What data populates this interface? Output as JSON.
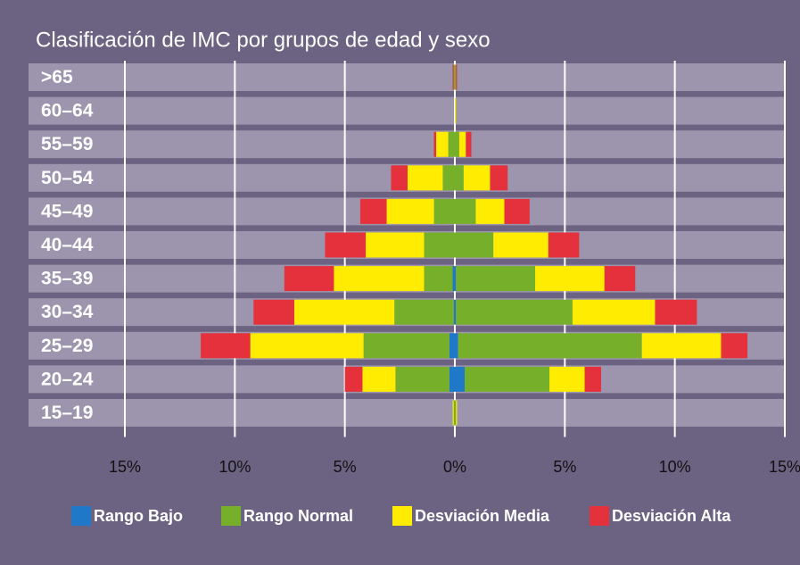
{
  "chart_data": {
    "type": "pyramid-stacked-bar",
    "title": "Clasificación de IMC por grupos de edad y sexo",
    "categories": [
      ">65",
      "60–64",
      "55–59",
      "50–54",
      "45–49",
      "40–44",
      "35–39",
      "30–34",
      "25–29",
      "20–24",
      "15–19"
    ],
    "series": [
      {
        "name": "Rango Bajo",
        "color": "#1f78c8",
        "left": [
          0,
          0,
          0,
          0,
          0,
          0,
          0.1,
          0.05,
          0.25,
          0.25,
          0
        ],
        "right": [
          0,
          0,
          0,
          0,
          0,
          0,
          0.05,
          0.05,
          0.15,
          0.45,
          0
        ]
      },
      {
        "name": "Rango Normal",
        "color": "#76b02a",
        "left": [
          0.05,
          0,
          0.3,
          0.55,
          0.95,
          1.4,
          1.3,
          2.7,
          3.9,
          2.45,
          0.05
        ],
        "right": [
          0.05,
          0,
          0.2,
          0.4,
          0.95,
          1.75,
          3.6,
          5.3,
          8.35,
          3.85,
          0.05
        ]
      },
      {
        "name": "Desviación Media",
        "color": "#ffec00",
        "left": [
          0,
          0,
          0.55,
          1.6,
          2.15,
          2.65,
          4.1,
          4.55,
          5.15,
          1.5,
          0.05
        ],
        "right": [
          0,
          0.05,
          0.3,
          1.2,
          1.3,
          2.5,
          3.15,
          3.75,
          3.6,
          1.6,
          0.05
        ]
      },
      {
        "name": "Desviación Alta",
        "color": "#e4313c",
        "left": [
          0.05,
          0,
          0.1,
          0.75,
          1.2,
          1.85,
          2.25,
          1.85,
          2.25,
          0.8,
          0
        ],
        "right": [
          0.05,
          0,
          0.25,
          0.8,
          1.15,
          1.4,
          1.4,
          1.9,
          1.2,
          0.75,
          0
        ]
      }
    ],
    "xlim": [
      -15,
      15
    ],
    "xticks": [
      {
        "value": -15,
        "label": "15%"
      },
      {
        "value": -10,
        "label": "10%"
      },
      {
        "value": -5,
        "label": "5%"
      },
      {
        "value": 0,
        "label": "0%"
      },
      {
        "value": 5,
        "label": "5%"
      },
      {
        "value": 10,
        "label": "10%"
      },
      {
        "value": 15,
        "label": "15%"
      }
    ],
    "grid": true
  }
}
